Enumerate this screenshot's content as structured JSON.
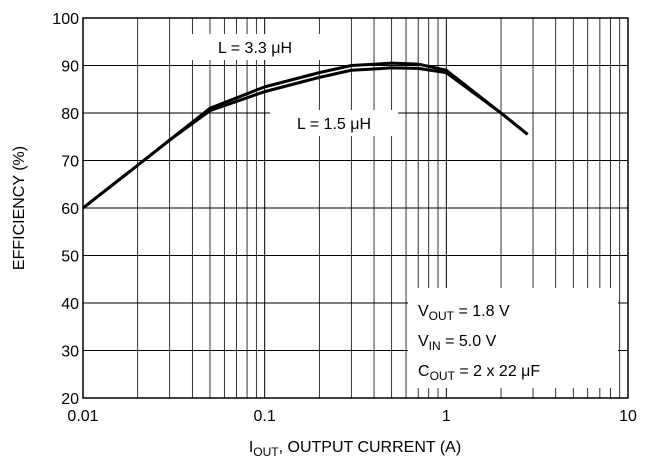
{
  "chart_data": {
    "type": "line",
    "xlabel": [
      "I",
      "OUT",
      ", OUTPUT CURRENT (A)"
    ],
    "ylabel": "EFFICIENCY (%)",
    "xscale": "log",
    "xlim": [
      0.01,
      10
    ],
    "ylim": [
      20,
      100
    ],
    "xticks": [
      0.01,
      0.1,
      1,
      10
    ],
    "yticks": [
      20,
      30,
      40,
      50,
      60,
      70,
      80,
      90,
      100
    ],
    "grid": true,
    "minor_grid": true,
    "series": [
      {
        "name": "L = 3.3 μH",
        "color": "#000000",
        "x": [
          0.01,
          0.02,
          0.03,
          0.05,
          0.1,
          0.2,
          0.3,
          0.5,
          0.7,
          1,
          2,
          2.8
        ],
        "values": [
          60,
          69,
          74.3,
          81,
          85.5,
          88.5,
          90,
          90.5,
          90.3,
          89,
          80,
          75.5
        ]
      },
      {
        "name": "L = 1.5 μH",
        "color": "#000000",
        "x": [
          0.01,
          0.02,
          0.03,
          0.05,
          0.1,
          0.2,
          0.3,
          0.5,
          0.7,
          1,
          2,
          2.8
        ],
        "values": [
          60,
          69,
          74.3,
          80.5,
          84.5,
          87.5,
          89,
          89.5,
          89.4,
          88.5,
          80,
          75.5
        ]
      }
    ],
    "conditions": [
      [
        "V",
        "OUT",
        " = 1.8 V"
      ],
      [
        "V",
        "IN",
        " = 5.0 V"
      ],
      [
        "C",
        "OUT",
        " = 2 x 22 μF"
      ]
    ]
  }
}
